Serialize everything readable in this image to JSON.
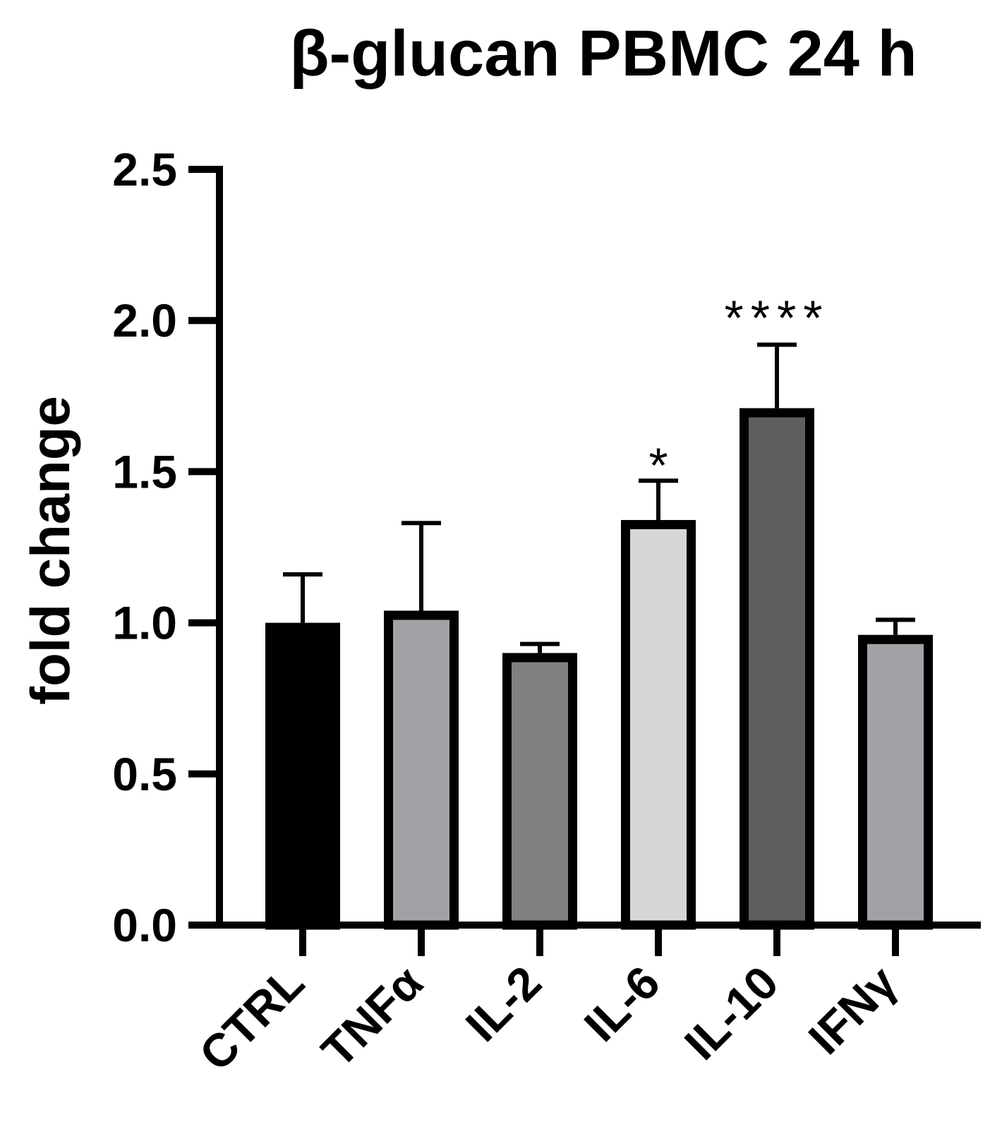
{
  "chart_data": {
    "type": "bar",
    "title": "β-glucan PBMC 24 h",
    "ylabel": "fold change",
    "xlabel": "",
    "ylim": [
      0,
      2.5
    ],
    "yticks": [
      0.0,
      0.5,
      1.0,
      1.5,
      2.0,
      2.5
    ],
    "ytick_labels": [
      "0.0",
      "0.5",
      "1.0",
      "1.5",
      "2.0",
      "2.5"
    ],
    "categories": [
      "CTRL",
      "TNFα",
      "IL-2",
      "IL-6",
      "IL-10",
      "IFNγ"
    ],
    "values": [
      1.0,
      1.04,
      0.9,
      1.34,
      1.71,
      0.96
    ],
    "errors": [
      0.16,
      0.29,
      0.03,
      0.13,
      0.21,
      0.05
    ],
    "annotations": [
      "",
      "",
      "",
      "*",
      "****",
      ""
    ],
    "bar_colors": [
      "#000000",
      "#a2a2a6",
      "#808080",
      "#d6d6d6",
      "#5e5e5e",
      "#a2a2a6"
    ],
    "edge_color": "#000000",
    "grid": false,
    "legend": "none"
  }
}
